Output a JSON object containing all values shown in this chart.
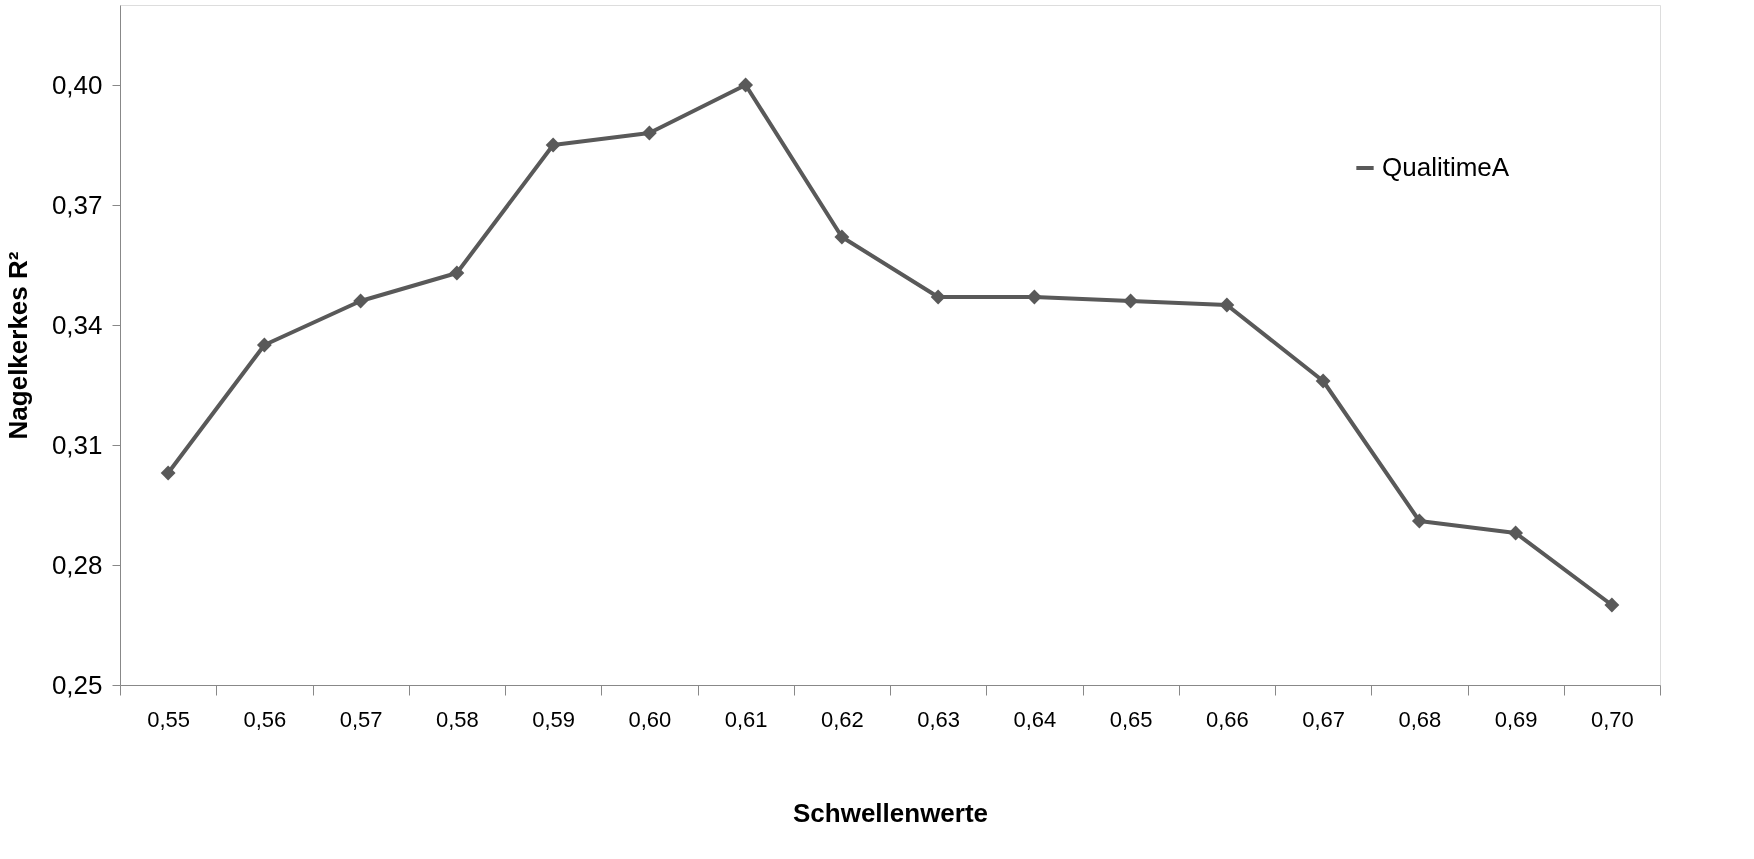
{
  "chart_data": {
    "type": "line",
    "xlabel": "Schwellenwerte",
    "ylabel": "Nagelkerkes  R²",
    "categories": [
      "0,55",
      "0,56",
      "0,57",
      "0,58",
      "0,59",
      "0,60",
      "0,61",
      "0,62",
      "0,63",
      "0,64",
      "0,65",
      "0,66",
      "0,67",
      "0,68",
      "0,69",
      "0,70"
    ],
    "series": [
      {
        "name": "QualitimeA",
        "color": "#595959",
        "values": [
          0.303,
          0.335,
          0.346,
          0.353,
          0.385,
          0.388,
          0.4,
          0.362,
          0.347,
          0.347,
          0.346,
          0.345,
          0.326,
          0.291,
          0.288,
          0.27
        ]
      }
    ],
    "ylim": [
      0.25,
      0.42
    ],
    "yticks": [
      {
        "value": 0.25,
        "label": "0,25"
      },
      {
        "value": 0.28,
        "label": "0,28"
      },
      {
        "value": 0.31,
        "label": "0,31"
      },
      {
        "value": 0.34,
        "label": "0,34"
      },
      {
        "value": 0.37,
        "label": "0,37"
      },
      {
        "value": 0.4,
        "label": "0,40"
      }
    ],
    "grid": false,
    "legend": "top right",
    "marker": "diamond",
    "line_style": "solid"
  }
}
